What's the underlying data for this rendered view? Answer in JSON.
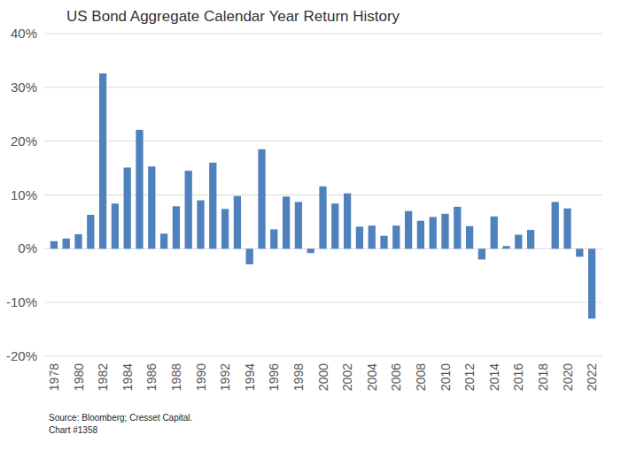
{
  "chart_data": {
    "type": "bar",
    "title": "US Bond Aggregate Calendar Year Return History",
    "notes": [
      "Source: Bloomberg; Cresset Capital.",
      "Chart #1358"
    ],
    "categories": [
      "1978",
      null,
      "1980",
      null,
      "1982",
      null,
      "1984",
      null,
      "1986",
      null,
      "1988",
      null,
      "1990",
      null,
      "1992",
      null,
      "1994",
      null,
      "1996",
      null,
      "1998",
      null,
      "2000",
      null,
      "2002",
      null,
      "2004",
      null,
      "2006",
      null,
      "2008",
      null,
      "2010",
      null,
      "2012",
      null,
      "2014",
      null,
      "2016",
      null,
      "2018",
      null,
      "2020",
      null,
      "2022"
    ],
    "values": [
      1.4,
      1.9,
      2.7,
      6.3,
      32.6,
      8.4,
      15.1,
      22.1,
      15.3,
      2.8,
      7.9,
      14.5,
      9.0,
      16.0,
      7.4,
      9.8,
      -2.9,
      18.5,
      3.6,
      9.7,
      8.7,
      -0.8,
      11.6,
      8.4,
      10.3,
      4.1,
      4.3,
      2.4,
      4.3,
      7.0,
      5.2,
      5.9,
      6.5,
      7.8,
      4.2,
      -2.0,
      6.0,
      0.5,
      2.6,
      3.5,
      0.0,
      8.7,
      7.5,
      -1.5,
      -13.0
    ],
    "color": "#4f81bd",
    "ylim": [
      -20,
      40
    ],
    "yticks": [
      {
        "value": -20,
        "label": "-20%"
      },
      {
        "value": -10,
        "label": "-10%"
      },
      {
        "value": 0,
        "label": "0%"
      },
      {
        "value": 10,
        "label": "10%"
      },
      {
        "value": 20,
        "label": "20%"
      },
      {
        "value": 30,
        "label": "30%"
      },
      {
        "value": 40,
        "label": "40%"
      }
    ],
    "grid": true
  }
}
